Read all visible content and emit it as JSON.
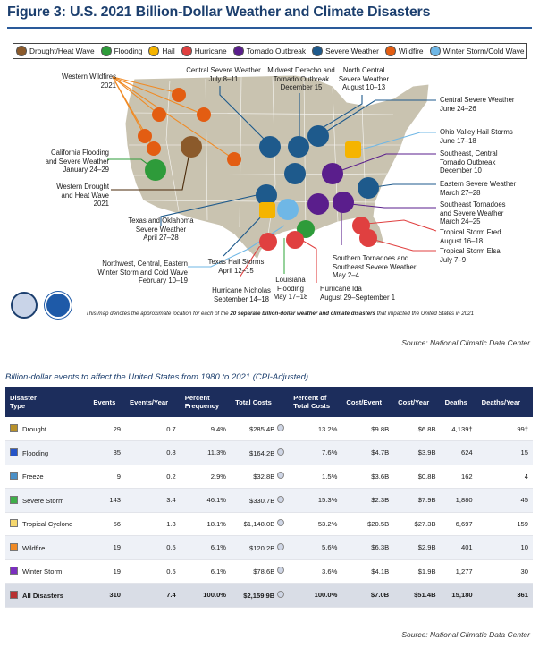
{
  "title": "Figure 3: U.S. 2021 Billion-Dollar Weather and Climate Disasters",
  "legend": [
    {
      "label": "Drought/Heat Wave",
      "icon": "drought-icon",
      "color": "#8b5a2b"
    },
    {
      "label": "Flooding",
      "icon": "flooding-icon",
      "color": "#2e9b3a"
    },
    {
      "label": "Hail",
      "icon": "hail-icon",
      "color": "#f5b400"
    },
    {
      "label": "Hurricane",
      "icon": "hurricane-icon",
      "color": "#e04040"
    },
    {
      "label": "Tornado Outbreak",
      "icon": "tornado-icon",
      "color": "#5a1e8c"
    },
    {
      "label": "Severe Weather",
      "icon": "severe-weather-icon",
      "color": "#1e5a8c"
    },
    {
      "label": "Wildfire",
      "icon": "wildfire-icon",
      "color": "#e35d12"
    },
    {
      "label": "Winter Storm/Cold Wave",
      "icon": "winter-storm-icon",
      "color": "#6fb7e6"
    }
  ],
  "callouts": {
    "western_wildfires": "Western Wildfires\n2021",
    "central_severe_jul": "Central Severe Weather\nJuly 8–11",
    "midwest_derecho": "Midwest Derecho and\nTornado Outbreak\nDecember 15",
    "north_central": "North Central\nSevere Weather\nAugust 10–13",
    "central_severe_jun": "Central Severe Weather\nJune 24–26",
    "ohio_hail": "Ohio Valley Hail Storms\nJune 17–18",
    "se_central_tornado": "Southeast, Central\nTornado Outbreak\nDecember 10",
    "eastern_severe": "Eastern Severe Weather\nMarch 27–28",
    "se_tornadoes_mar": "Southeast Tornadoes\nand Severe Weather\nMarch 24–25",
    "fred": "Tropical Storm Fred\nAugust 16–18",
    "elsa": "Tropical Storm Elsa\nJuly 7–9",
    "se_tornadoes_may": "Southern Tornadoes and\nSoutheast Severe Weather\nMay 2–4",
    "ida": "Hurricane Ida\nAugust 29–September 1",
    "louisiana": "Louisiana\nFlooding\nMay 17–18",
    "nicholas": "Hurricane Nicholas\nSeptember 14–18",
    "texas_hail": "Texas Hail Storms\nApril 12–15",
    "winter_storm": "Northwest, Central, Eastern\nWinter Storm and Cold Wave\nFebruary 10–19",
    "tx_ok_severe": "Texas and Oklahoma\nSevere Weather\nApril 27–28",
    "western_drought": "Western Drought\nand Heat Wave\n2021",
    "ca_flooding": "California Flooding\nand Severe Weather\nJanuary 24–29"
  },
  "map_footnote_pre": "This map denotes the approximate location for each of the ",
  "map_footnote_bold": "20 separate billion-dollar weather and climate disasters",
  "map_footnote_post": " that impacted the United States in 2021",
  "source_map": "Source: National Climatic Data Center",
  "table": {
    "caption": "Billion-dollar events to affect the United States from 1980 to 2021 (CPI-Adjusted)",
    "headers": [
      "Disaster\nType",
      "Events",
      "Events/Year",
      "Percent\nFrequency",
      "Total Costs",
      "Percent of\nTotal Costs",
      "Cost/Event",
      "Cost/Year",
      "Deaths",
      "Deaths/Year"
    ],
    "rows": [
      {
        "type": "Drought",
        "color": "#b8912a",
        "events": "29",
        "per_year": "0.7",
        "pct_freq": "9.4%",
        "total_costs": "$285.4B",
        "pct_costs": "13.2%",
        "cost_event": "$9.8B",
        "cost_year": "$6.8B",
        "deaths": "4,139†",
        "deaths_year": "99†"
      },
      {
        "type": "Flooding",
        "color": "#2554c7",
        "events": "35",
        "per_year": "0.8",
        "pct_freq": "11.3%",
        "total_costs": "$164.2B",
        "pct_costs": "7.6%",
        "cost_event": "$4.7B",
        "cost_year": "$3.9B",
        "deaths": "624",
        "deaths_year": "15"
      },
      {
        "type": "Freeze",
        "color": "#4a90c8",
        "events": "9",
        "per_year": "0.2",
        "pct_freq": "2.9%",
        "total_costs": "$32.8B",
        "pct_costs": "1.5%",
        "cost_event": "$3.6B",
        "cost_year": "$0.8B",
        "deaths": "162",
        "deaths_year": "4"
      },
      {
        "type": "Severe Storm",
        "color": "#3fae49",
        "events": "143",
        "per_year": "3.4",
        "pct_freq": "46.1%",
        "total_costs": "$330.7B",
        "pct_costs": "15.3%",
        "cost_event": "$2.3B",
        "cost_year": "$7.9B",
        "deaths": "1,880",
        "deaths_year": "45"
      },
      {
        "type": "Tropical Cyclone",
        "color": "#f5d76e",
        "events": "56",
        "per_year": "1.3",
        "pct_freq": "18.1%",
        "total_costs": "$1,148.0B",
        "pct_costs": "53.2%",
        "cost_event": "$20.5B",
        "cost_year": "$27.3B",
        "deaths": "6,697",
        "deaths_year": "159"
      },
      {
        "type": "Wildfire",
        "color": "#f08a24",
        "events": "19",
        "per_year": "0.5",
        "pct_freq": "6.1%",
        "total_costs": "$120.2B",
        "pct_costs": "5.6%",
        "cost_event": "$6.3B",
        "cost_year": "$2.9B",
        "deaths": "401",
        "deaths_year": "10"
      },
      {
        "type": "Winter Storm",
        "color": "#7b2fbf",
        "events": "19",
        "per_year": "0.5",
        "pct_freq": "6.1%",
        "total_costs": "$78.6B",
        "pct_costs": "3.6%",
        "cost_event": "$4.1B",
        "cost_year": "$1.9B",
        "deaths": "1,277",
        "deaths_year": "30"
      }
    ],
    "total": {
      "type": "All Disasters",
      "color": "#b83232",
      "events": "310",
      "per_year": "7.4",
      "pct_freq": "100.0%",
      "total_costs": "$2,159.9B",
      "pct_costs": "100.0%",
      "cost_event": "$7.0B",
      "cost_year": "$51.4B",
      "deaths": "15,180",
      "deaths_year": "361"
    }
  },
  "source_table": "Source: National Climatic Data Center"
}
